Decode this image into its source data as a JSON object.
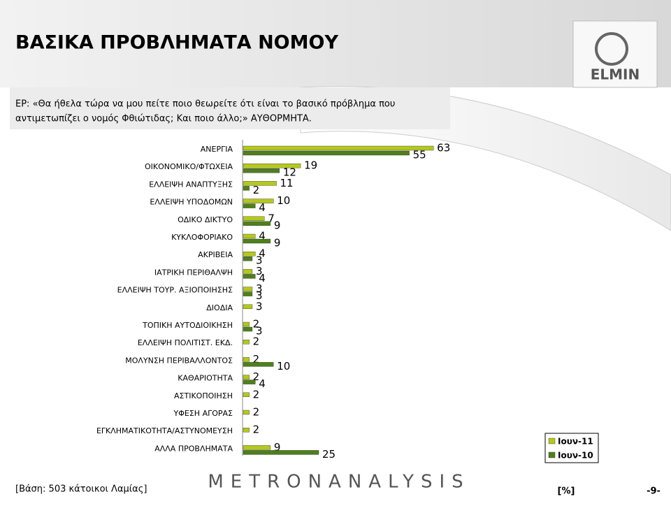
{
  "header": {
    "title": "ΒΑΣΙΚΑ ΠΡΟΒΛΗΜΑΤΑ ΝΟΜΟΥ",
    "logo": "ELMIN"
  },
  "question": [
    "ΕΡ: «Θα ήθελα τώρα να μου πείτε ποιο θεωρείτε ότι είναι το βασικό πρόβλημα που",
    "αντιμετωπίζει ο νομός Φθιώτιδας; Και ποιο άλλο;» ΑΥΘΟΡΜΗΤΑ."
  ],
  "chart_data": {
    "type": "hbar",
    "categories": [
      "ΑΝΕΡΓΙΑ",
      "ΟΙΚΟΝΟΜΙΚΟ/ΦΤΩΧΕΙΑ",
      "ΕΛΛΕΙΨΗ ΑΝΑΠΤΥΞΗΣ",
      "ΕΛΛΕΙΨΗ ΥΠΟΔΟΜΩΝ",
      "ΟΔΙΚΟ ΔΙΚΤΥΟ",
      "ΚΥΚΛΟΦΟΡΙΑΚΟ",
      "ΑΚΡΙΒΕΙΑ",
      "ΙΑΤΡΙΚΗ ΠΕΡΙΘΑΛΨΗ",
      "ΕΛΛΕΙΨΗ ΤΟΥΡ. ΑΞΙΟΠΟΙΗΣΗΣ",
      "ΔΙΟΔΙΑ",
      "ΤΟΠΙΚΗ ΑΥΤΟΔΙΟΙΚΗΣΗ",
      "ΕΛΛΕΙΨΗ ΠΟΛΙΤΙΣΤ. ΕΚΔ.",
      "ΜΟΛΥΝΣΗ ΠΕΡΙΒΑΛΛΟΝΤΟΣ",
      "ΚΑΘΑΡΙΟΤΗΤΑ",
      "ΑΣΤΙΚΟΠΟΙΗΣΗ",
      "ΥΦΕΣΗ ΑΓΟΡΑΣ",
      "ΕΓΚΛΗΜΑΤΙΚΟΤΗΤΑ/ΑΣΤΥΝΟΜΕΥΣΗ",
      "ΑΛΛΑ ΠΡΟΒΛΗΜΑΤΑ"
    ],
    "series": [
      {
        "name": "Ιουν-11",
        "color": "#b5c81e",
        "values": [
          63,
          19,
          11,
          10,
          7,
          4,
          4,
          3,
          3,
          3,
          2,
          2,
          2,
          2,
          2,
          2,
          2,
          9
        ]
      },
      {
        "name": "Ιουν-10",
        "color": "#4f7f1c",
        "values": [
          55,
          12,
          2,
          4,
          9,
          9,
          3,
          4,
          3,
          null,
          3,
          null,
          10,
          4,
          null,
          null,
          null,
          25
        ]
      }
    ]
  },
  "footer": {
    "base": "[Βάση: 503 κάτοικοι Λαμίας]",
    "brand": "METRONANALYSIS",
    "unit": "[%]",
    "page": "-9-"
  }
}
